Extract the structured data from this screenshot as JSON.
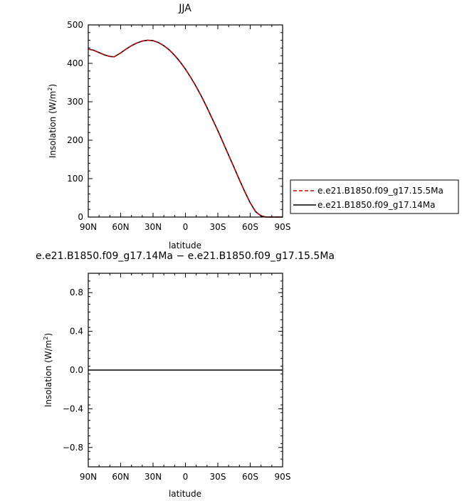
{
  "chart_data": [
    {
      "type": "line",
      "title": "JJA",
      "xlabel": "latitude",
      "ylabel": "Insolation  (W/m",
      "ylabel_sup": "2",
      "ylabel_end": ")",
      "xlim": [
        90,
        -90
      ],
      "ylim": [
        0,
        500
      ],
      "x_ticks": [
        90,
        60,
        30,
        0,
        -30,
        -60,
        -90
      ],
      "x_tick_labels": [
        "90N",
        "60N",
        "30N",
        "0",
        "30S",
        "60S",
        "90S"
      ],
      "y_ticks": [
        0,
        100,
        200,
        300,
        400,
        500
      ],
      "y_tick_labels": [
        "0",
        "100",
        "200",
        "300",
        "400",
        "500"
      ],
      "legend_position": "right",
      "x": [
        90,
        85,
        80,
        75,
        70,
        66,
        60,
        55,
        50,
        45,
        40,
        35,
        30,
        25,
        20,
        15,
        10,
        5,
        0,
        -5,
        -10,
        -15,
        -20,
        -25,
        -30,
        -35,
        -40,
        -45,
        -50,
        -55,
        -60,
        -65,
        -70,
        -75,
        -80,
        -85,
        -90
      ],
      "series": [
        {
          "name": "e.e21.B1850.f09_g17.15.5Ma",
          "color": "#cc0000",
          "dash": "dashed",
          "values": [
            437,
            434,
            428,
            422,
            418,
            417,
            427,
            437,
            446,
            453,
            458,
            460,
            459,
            454,
            446,
            435,
            421,
            404,
            385,
            363,
            339,
            313,
            285,
            255,
            225,
            193,
            161,
            129,
            97,
            66,
            37,
            14,
            3,
            0,
            0,
            0,
            0
          ]
        },
        {
          "name": "e.e21.B1850.f09_g17.14Ma",
          "color": "#000000",
          "dash": "solid",
          "values": [
            437,
            434,
            428,
            422,
            418,
            417,
            427,
            437,
            446,
            453,
            458,
            460,
            459,
            454,
            446,
            435,
            421,
            404,
            385,
            363,
            339,
            313,
            285,
            255,
            225,
            193,
            161,
            129,
            97,
            66,
            37,
            14,
            3,
            0,
            0,
            0,
            0
          ]
        }
      ]
    },
    {
      "type": "line",
      "title": "e.e21.B1850.f09_g17.14Ma − e.e21.B1850.f09_g17.15.5Ma",
      "xlabel": "latitude",
      "ylabel": "Insolation  (W/m",
      "ylabel_sup": "2",
      "ylabel_end": ")",
      "xlim": [
        90,
        -90
      ],
      "ylim": [
        -1,
        1
      ],
      "x_ticks": [
        90,
        60,
        30,
        0,
        -30,
        -60,
        -90
      ],
      "x_tick_labels": [
        "90N",
        "60N",
        "30N",
        "0",
        "30S",
        "60S",
        "90S"
      ],
      "y_ticks": [
        -0.8,
        -0.4,
        0,
        0.4,
        0.8
      ],
      "y_tick_labels": [
        "−0.8",
        "−0.4",
        "0.0",
        "0.4",
        "0.8"
      ],
      "x": [
        90,
        -90
      ],
      "series": [
        {
          "color": "#000000",
          "dash": "solid",
          "values": [
            0,
            0
          ]
        }
      ]
    }
  ]
}
